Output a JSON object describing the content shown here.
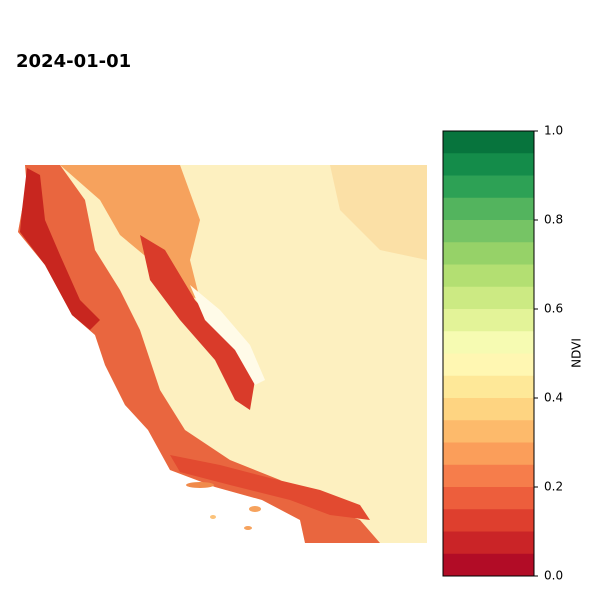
{
  "title": "2024-01-01",
  "colorbar": {
    "label": "NDVI",
    "vlim": [
      0,
      1
    ],
    "ticks": [
      {
        "value": 0,
        "label": "0.0"
      },
      {
        "value": 0.2,
        "label": "0.2"
      },
      {
        "value": 0.4,
        "label": "0.4"
      },
      {
        "value": 0.6,
        "label": "0.6"
      },
      {
        "value": 0.8,
        "label": "0.8"
      },
      {
        "value": 1,
        "label": "1.0"
      }
    ],
    "colormap": [
      "#a50026",
      "#d73027",
      "#f46d43",
      "#fdae61",
      "#fee08b",
      "#ffffbf",
      "#d9ef8b",
      "#a6d96a",
      "#66bd63",
      "#1a9850",
      "#006837"
    ]
  }
}
